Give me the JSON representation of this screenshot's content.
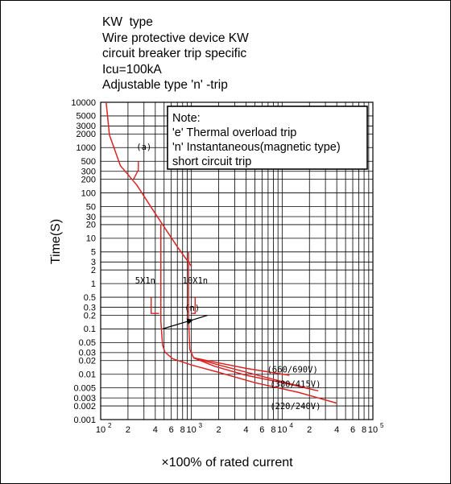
{
  "header": {
    "lines": [
      "KW  type",
      "Wire protective device KW",
      "circuit breaker trip specific",
      "Icu=100kA",
      "Adjustable type 'n' -trip"
    ]
  },
  "chart_data": {
    "type": "line",
    "ylabel": "Time(S)",
    "xlabel": "×100% of rated current",
    "xscale": "log",
    "yscale": "log",
    "xlim": [
      100,
      100000
    ],
    "ylim": [
      0.001,
      10000
    ],
    "grid": true,
    "y_ticks": [
      {
        "v": 10000,
        "label": "10000"
      },
      {
        "v": 5000,
        "label": "5000"
      },
      {
        "v": 3000,
        "label": "3000"
      },
      {
        "v": 2000,
        "label": "2000"
      },
      {
        "v": 1000,
        "label": "1000"
      },
      {
        "v": 500,
        "label": "500"
      },
      {
        "v": 300,
        "label": "300"
      },
      {
        "v": 200,
        "label": "200"
      },
      {
        "v": 100,
        "label": "100"
      },
      {
        "v": 50,
        "label": "50"
      },
      {
        "v": 30,
        "label": "30"
      },
      {
        "v": 20,
        "label": "20"
      },
      {
        "v": 10,
        "label": "10"
      },
      {
        "v": 5,
        "label": "5"
      },
      {
        "v": 3,
        "label": "3"
      },
      {
        "v": 2,
        "label": "2"
      },
      {
        "v": 1,
        "label": "1"
      },
      {
        "v": 0.5,
        "label": "0.5"
      },
      {
        "v": 0.3,
        "label": "0.3"
      },
      {
        "v": 0.2,
        "label": "0.2"
      },
      {
        "v": 0.1,
        "label": "0.1"
      },
      {
        "v": 0.05,
        "label": "0.05"
      },
      {
        "v": 0.03,
        "label": "0.03"
      },
      {
        "v": 0.02,
        "label": "0.02"
      },
      {
        "v": 0.01,
        "label": "0.01"
      },
      {
        "v": 0.005,
        "label": "0.005"
      },
      {
        "v": 0.003,
        "label": "0.003"
      },
      {
        "v": 0.002,
        "label": "0.002"
      },
      {
        "v": 0.001,
        "label": "0.001"
      }
    ],
    "x_ticks": [
      {
        "v": 100,
        "label": "10",
        "sup": "2"
      },
      {
        "v": 200,
        "label": "2"
      },
      {
        "v": 400,
        "label": "4"
      },
      {
        "v": 600,
        "label": "6"
      },
      {
        "v": 800,
        "label": "8"
      },
      {
        "v": 1000,
        "label": "10",
        "sup": "3"
      },
      {
        "v": 2000,
        "label": "2"
      },
      {
        "v": 4000,
        "label": "4"
      },
      {
        "v": 6000,
        "label": "6"
      },
      {
        "v": 8000,
        "label": "8"
      },
      {
        "v": 10000,
        "label": "10",
        "sup": "4"
      },
      {
        "v": 20000,
        "label": "2"
      },
      {
        "v": 40000,
        "label": "4"
      },
      {
        "v": 60000,
        "label": "6"
      },
      {
        "v": 80000,
        "label": "8"
      },
      {
        "v": 100000,
        "label": "10",
        "sup": "5"
      }
    ],
    "x_gridlines": [
      100,
      200,
      300,
      400,
      500,
      600,
      700,
      800,
      900,
      1000,
      2000,
      3000,
      4000,
      5000,
      6000,
      7000,
      8000,
      9000,
      10000,
      20000,
      30000,
      40000,
      50000,
      60000,
      70000,
      80000,
      90000,
      100000
    ],
    "series": [
      {
        "id": "thermal",
        "points": [
          [
            115,
            10000
          ],
          [
            125,
            1900
          ],
          [
            165,
            400
          ],
          [
            250,
            150
          ],
          [
            400,
            35
          ],
          [
            700,
            6.5
          ],
          [
            1000,
            2.4
          ]
        ]
      },
      {
        "id": "5x1n",
        "points": [
          [
            460,
            20
          ],
          [
            460,
            0.15
          ],
          [
            480,
            0.045
          ],
          [
            510,
            0.031
          ],
          [
            620,
            0.022
          ],
          [
            1000,
            0.016
          ],
          [
            2000,
            0.011
          ],
          [
            5000,
            0.0065
          ],
          [
            15000,
            0.004
          ],
          [
            40000,
            0.0023
          ]
        ]
      },
      {
        "id": "10x1n",
        "points": [
          [
            930,
            5
          ],
          [
            930,
            0.16
          ],
          [
            960,
            0.035
          ],
          [
            1060,
            0.023
          ],
          [
            1800,
            0.015
          ],
          [
            4000,
            0.0095
          ],
          [
            10000,
            0.0065
          ],
          [
            25000,
            0.0043
          ]
        ]
      },
      {
        "id": "660-690V",
        "points": [
          [
            1060,
            0.023
          ],
          [
            1500,
            0.02
          ],
          [
            4000,
            0.0135
          ],
          [
            12000,
            0.0095
          ]
        ]
      },
      {
        "id": "380-415V",
        "points": [
          [
            1060,
            0.023
          ],
          [
            2000,
            0.016
          ],
          [
            6000,
            0.009
          ],
          [
            20000,
            0.0048
          ]
        ]
      }
    ],
    "annotations": [
      {
        "text": "(a)",
        "x": 300,
        "y": 900
      },
      {
        "text": "5X1n",
        "x": 310,
        "y": 1.0
      },
      {
        "text": "10X1n",
        "x": 1100,
        "y": 1.0
      },
      {
        "text": "(n)",
        "x": 1020,
        "y": 0.25
      },
      {
        "text": "(660/690V)",
        "x": 13000,
        "y": 0.011
      },
      {
        "text": "(380/415V)",
        "x": 14000,
        "y": 0.0052
      },
      {
        "text": "(220/240V)",
        "x": 14000,
        "y": 0.0017
      }
    ],
    "note": {
      "lines": [
        "Note:",
        "'e' Thermal overload trip",
        "'n' Instantaneous(magnetic type)",
        "short circuit trip"
      ]
    },
    "curve_color": "#dd2222"
  }
}
